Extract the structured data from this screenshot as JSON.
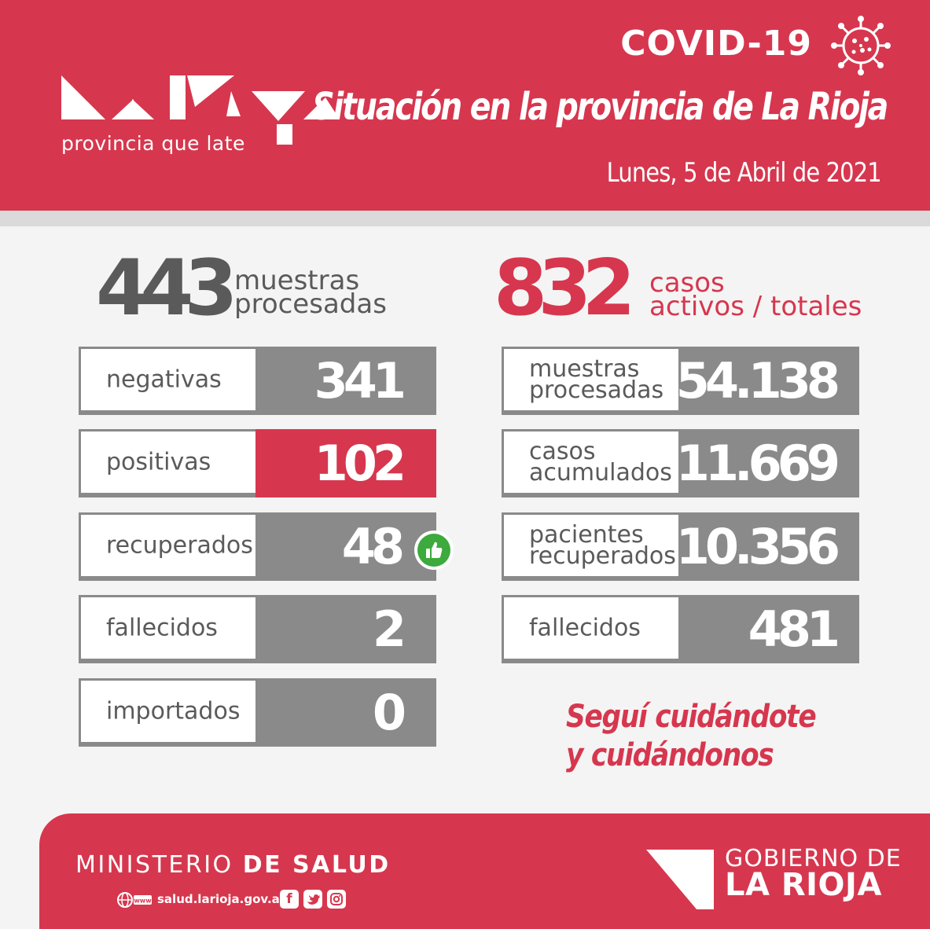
{
  "header": {
    "logo_subtitle": "provincia que late",
    "covid_title": "COVID-19",
    "headline": "Situación en la provincia de La Rioja",
    "date": "Lunes, 5 de Abril de 2021",
    "virus_icon": "virus-icon"
  },
  "daily": {
    "big_number": "443",
    "big_label_line1": "muestras",
    "big_label_line2": "procesadas",
    "rows": [
      {
        "label": "negativas",
        "value": "341"
      },
      {
        "label": "positivas",
        "value": "102",
        "highlight": true
      },
      {
        "label": "recuperados",
        "value": "48",
        "icon": "thumbs-up-icon"
      },
      {
        "label": "fallecidos",
        "value": "2"
      },
      {
        "label": "importados",
        "value": "0"
      }
    ]
  },
  "totals": {
    "big_number": "832",
    "big_label_line1": "casos",
    "big_label_line2": "activos / totales",
    "rows": [
      {
        "label_line1": "muestras",
        "label_line2": "procesadas",
        "value": "54.138"
      },
      {
        "label_line1": "casos",
        "label_line2": "acumulados",
        "value": "11.669"
      },
      {
        "label_line1": "pacientes",
        "label_line2": "recuperados",
        "value": "10.356"
      },
      {
        "label_line1": "fallecidos",
        "label_line2": "",
        "value": "481"
      }
    ]
  },
  "slogan": {
    "line1": "Seguí cuidándote",
    "line2": "y cuidándonos"
  },
  "footer": {
    "ministerio_light": "MINISTERIO",
    "ministerio_bold": "DE SALUD",
    "website": "salud.larioja.gov.ar",
    "web_icon_text": "www",
    "social_icons": [
      "facebook-icon",
      "twitter-icon",
      "instagram-icon"
    ],
    "gobierno_line1": "GOBIERNO DE",
    "gobierno_line2": "LA RIOJA"
  },
  "colors": {
    "brand_red": "#d6374e",
    "value_gray": "#8a8a8a",
    "text_gray": "#5a5a5a",
    "thumb_green": "#3caa3c"
  }
}
